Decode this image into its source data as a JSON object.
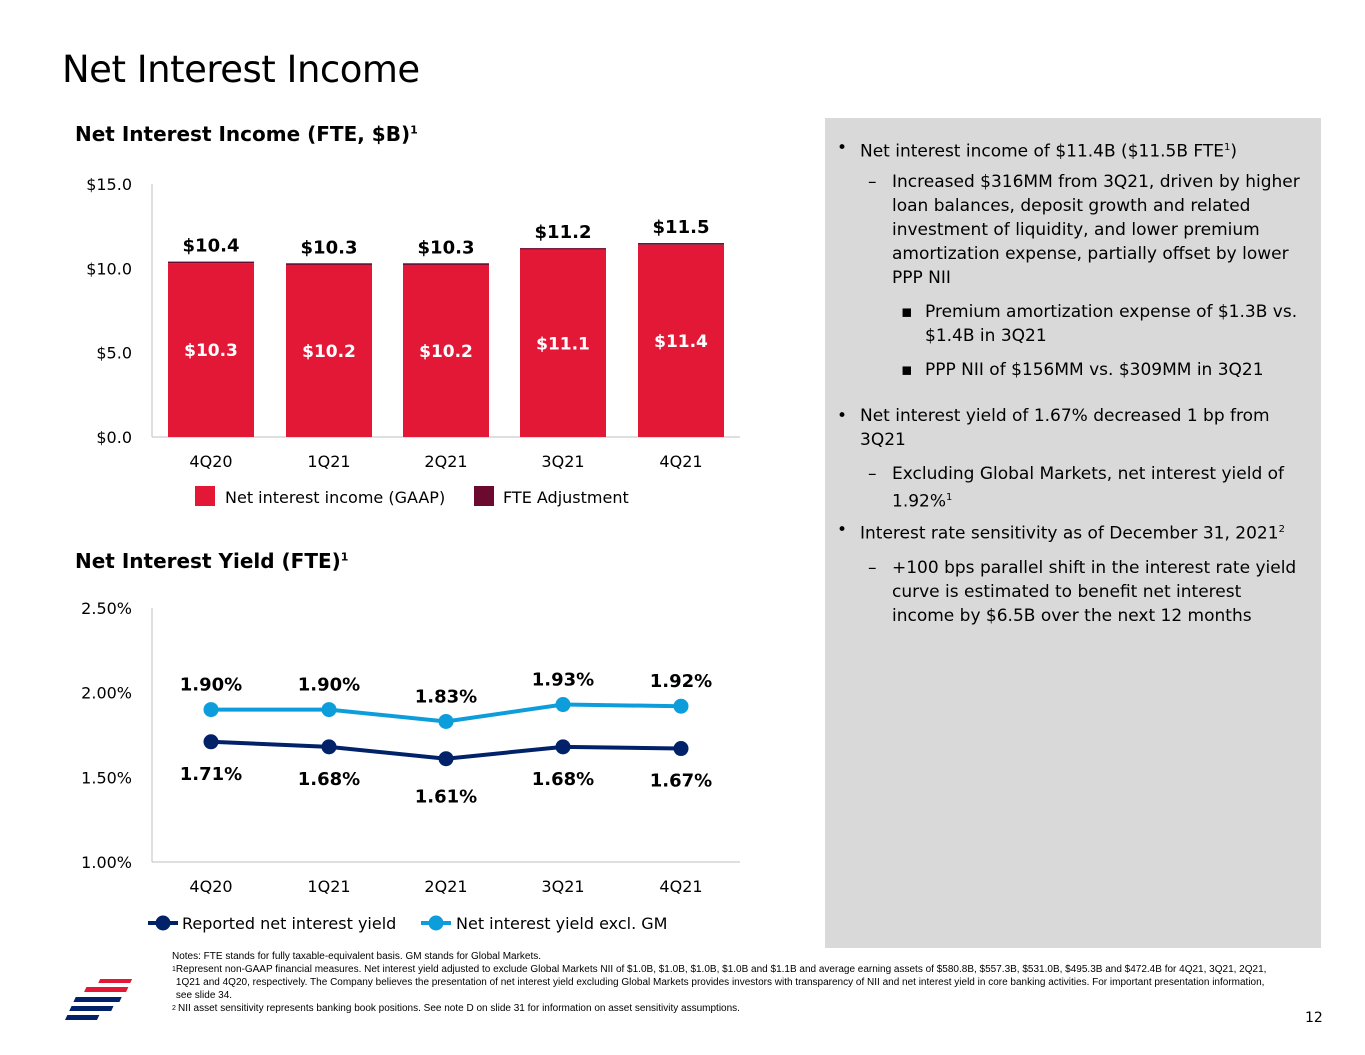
{
  "title": "Net Interest Income",
  "colors": {
    "gaap": "#E31837",
    "fte": "#6B0A2E",
    "reported": "#012169",
    "excl_gm": "#0D9DDB",
    "panel": "#D9D9D9"
  },
  "chart_data": [
    {
      "type": "bar",
      "stacked": true,
      "title": "Net Interest Income (FTE, $B)",
      "title_sup": "1",
      "categories": [
        "4Q20",
        "1Q21",
        "2Q21",
        "3Q21",
        "4Q21"
      ],
      "series": [
        {
          "name": "Net interest income (GAAP)",
          "values": [
            10.3,
            10.2,
            10.2,
            11.1,
            11.4
          ],
          "labels": [
            "$10.3",
            "$10.2",
            "$10.2",
            "$11.1",
            "$11.4"
          ]
        },
        {
          "name": "FTE Adjustment",
          "values": [
            0.1,
            0.1,
            0.1,
            0.1,
            0.1
          ]
        }
      ],
      "totals": [
        10.4,
        10.3,
        10.3,
        11.2,
        11.5
      ],
      "total_labels": [
        "$10.4",
        "$10.3",
        "$10.3",
        "$11.2",
        "$11.5"
      ],
      "ylim": [
        0,
        15
      ],
      "yticks": [
        "$0.0",
        "$5.0",
        "$10.0",
        "$15.0"
      ],
      "legend": "bottom"
    },
    {
      "type": "line",
      "title": "Net Interest Yield (FTE)",
      "title_sup": "1",
      "categories": [
        "4Q20",
        "1Q21",
        "2Q21",
        "3Q21",
        "4Q21"
      ],
      "series": [
        {
          "name": "Reported net interest yield",
          "values": [
            1.71,
            1.68,
            1.61,
            1.68,
            1.67
          ],
          "labels": [
            "1.71%",
            "1.68%",
            "1.61%",
            "1.68%",
            "1.67%"
          ]
        },
        {
          "name": "Net interest yield excl. GM",
          "values": [
            1.9,
            1.9,
            1.83,
            1.93,
            1.92
          ],
          "labels": [
            "1.90%",
            "1.90%",
            "1.83%",
            "1.93%",
            "1.92%"
          ]
        }
      ],
      "ylim": [
        1.0,
        2.5
      ],
      "yticks": [
        "1.00%",
        "1.50%",
        "2.00%",
        "2.50%"
      ],
      "legend": "bottom"
    }
  ],
  "bullets": [
    {
      "level": 1,
      "text": "Net interest income of $11.4B ($11.5B FTE",
      "sup": "1",
      "after": ")"
    },
    {
      "level": 2,
      "text": "Increased $316MM from 3Q21, driven by higher loan balances, deposit growth and related investment of liquidity, and lower premium amortization expense, partially offset by lower PPP NII"
    },
    {
      "level": 3,
      "text": "Premium amortization expense of $1.3B vs. $1.4B in 3Q21"
    },
    {
      "level": 3,
      "text": "PPP NII of $156MM vs. $309MM in 3Q21"
    },
    {
      "level": 1,
      "text": "Net interest yield of 1.67% decreased 1 bp from 3Q21"
    },
    {
      "level": 2,
      "text": "Excluding Global Markets, net interest yield of 1.92%",
      "sup": "1"
    },
    {
      "level": 1,
      "text": "Interest rate sensitivity as of December 31, 2021",
      "sup": "2"
    },
    {
      "level": 2,
      "text": "+100 bps parallel shift in the interest rate yield curve is estimated to benefit net interest income by $6.5B over the next 12 months"
    }
  ],
  "notes": {
    "line0": "Notes: FTE stands for fully taxable-equivalent basis. GM stands for Global Markets.",
    "n1_mark": "1",
    "n1": "Represent non-GAAP financial measures. Net interest yield adjusted to exclude Global Markets NII of $1.0B, $1.0B, $1.0B, $1.0B and $1.1B and average earning assets of $580.8B, $557.3B, $531.0B, $495.3B and $472.4B for 4Q21, 3Q21, 2Q21, 1Q21 and 4Q20, respectively. The Company believes the presentation of net interest yield excluding Global Markets provides investors with transparency of NII and net interest yield in core banking activities. For important presentation information, see slide 34.",
    "n2_mark": "2",
    "n2": "NII asset sensitivity represents banking book positions. See note D on slide 31 for information on asset sensitivity assumptions."
  },
  "page_number": "12",
  "logo": "Bank of America flag logo"
}
